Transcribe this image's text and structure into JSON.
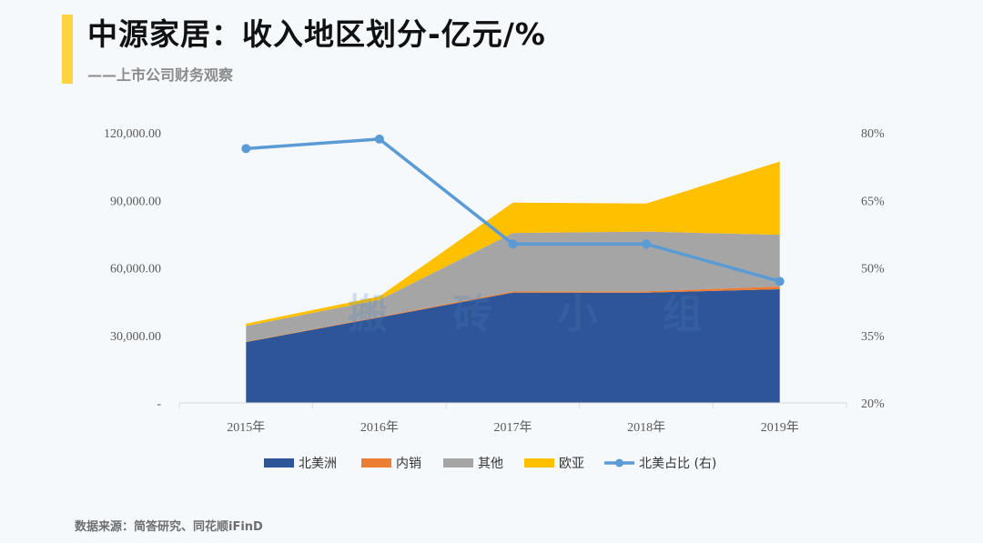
{
  "header": {
    "title": "中源家居：收入地区划分-亿元/%",
    "subtitle": "——上市公司财务观察"
  },
  "footer": {
    "source": "数据来源：简答研究、同花顺iFinD"
  },
  "watermark": "搬 砖 小 组",
  "colors": {
    "north_america": "#2e5597",
    "domestic": "#ed7d31",
    "other": "#a5a5a5",
    "europe_asia": "#ffc000",
    "ratio": "#5b9bd5",
    "accent": "#ffd23f"
  },
  "chart_data": {
    "type": "area",
    "categories": [
      "2015年",
      "2016年",
      "2017年",
      "2018年",
      "2019年"
    ],
    "stacked": true,
    "series": [
      {
        "name": "北美洲",
        "values": [
          27000,
          38000,
          49000,
          49000,
          50500
        ],
        "color": "#2e5597"
      },
      {
        "name": "内销",
        "values": [
          200,
          300,
          500,
          600,
          1200
        ],
        "color": "#ed7d31"
      },
      {
        "name": "其他",
        "values": [
          7000,
          7500,
          26000,
          26500,
          23000
        ],
        "color": "#a5a5a5"
      },
      {
        "name": "欧亚",
        "values": [
          1000,
          1500,
          13500,
          12500,
          32500
        ],
        "color": "#ffc000"
      }
    ],
    "line_series": {
      "name": "北美占比 (右)",
      "axis": "right",
      "values": [
        76.5,
        78.6,
        55.3,
        55.3,
        47.0
      ],
      "color": "#5b9bd5"
    },
    "left_axis": {
      "min": 0,
      "max": 120000,
      "ticks": [
        0,
        30000,
        60000,
        90000,
        120000
      ],
      "tick_labels": [
        "-",
        "30,000.00",
        "60,000.00",
        "90,000.00",
        "120,000.00"
      ]
    },
    "right_axis": {
      "min": 20,
      "max": 80,
      "ticks": [
        20,
        35,
        50,
        65,
        80
      ],
      "tick_labels": [
        "20%",
        "35%",
        "50%",
        "65%",
        "80%"
      ]
    },
    "legend": [
      "北美洲",
      "内销",
      "其他",
      "欧亚",
      "北美占比 (右)"
    ],
    "legend_position": "bottom"
  }
}
